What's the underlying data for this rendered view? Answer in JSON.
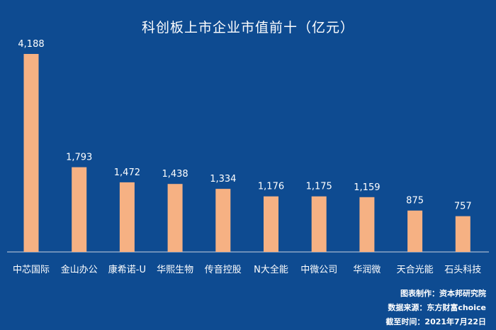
{
  "chart_data": {
    "type": "bar",
    "title": "科创板上市企业市值前十（亿元）",
    "categories": [
      "中芯国际",
      "金山办公",
      "康希诺-U",
      "华熙生物",
      "传音控股",
      "N大全能",
      "中微公司",
      "华润微",
      "天合光能",
      "石头科技"
    ],
    "values": [
      4188,
      1793,
      1472,
      1438,
      1334,
      1176,
      1175,
      1159,
      875,
      757
    ],
    "value_labels": [
      "4,188",
      "1,793",
      "1,472",
      "1,438",
      "1,334",
      "1,176",
      "1,175",
      "1,159",
      "875",
      "757"
    ],
    "xlabel": "",
    "ylabel": "",
    "ylim": [
      0,
      4188
    ],
    "grid": false,
    "legend": "none",
    "bar_color": "#f6b183",
    "background_color": "#0e4b91"
  },
  "credits": [
    "图表制作：资本邦研究院",
    "数据来源：东方财富choice",
    "截至时间：2021年7月22日"
  ]
}
